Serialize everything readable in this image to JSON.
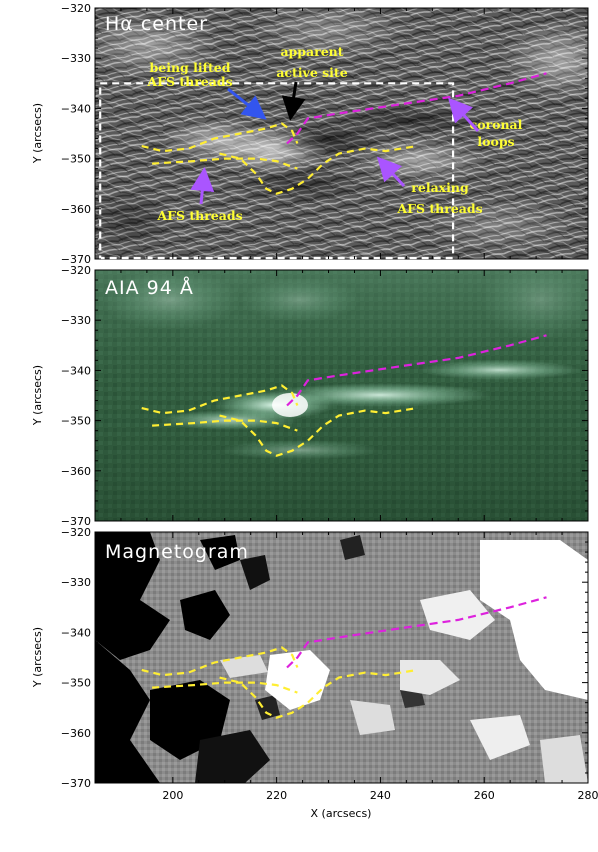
{
  "figure": {
    "panels": [
      {
        "id": "halpha",
        "title": "Hα center",
        "ylabel": "Y (arcsecs)",
        "background": "#6b6b6b",
        "annotations": [
          {
            "id": "being-lifted",
            "lines": [
              "being lifted",
              "AFS threads"
            ],
            "color": "#ffff33"
          },
          {
            "id": "apparent-active",
            "lines": [
              "apparent",
              "active site"
            ],
            "color": "#ffff33"
          },
          {
            "id": "coronal-loops",
            "lines": [
              "coronal",
              "loops"
            ],
            "color": "#ffff33"
          },
          {
            "id": "afs-threads",
            "lines": [
              "AFS threads"
            ],
            "color": "#ffff33"
          },
          {
            "id": "relaxing",
            "lines": [
              "relaxing",
              "AFS threads"
            ],
            "color": "#ffff33"
          }
        ]
      },
      {
        "id": "aia94",
        "title": "AIA 94 Å",
        "ylabel": "Y (arcsecs)",
        "background": "#2f5a3c"
      },
      {
        "id": "magnetogram",
        "title": "Magnetogram",
        "ylabel": "Y (arcsecs)",
        "background": "#8a8a8a"
      }
    ],
    "xlabel": "X (arcsecs)",
    "colors": {
      "filament_dash": "#ffee33",
      "loop_dash": "#dd22dd",
      "arrow_blue": "#3355ee",
      "arrow_black": "#000000",
      "arrow_purple": "#aa55ff",
      "box_dash": "#ffffff"
    }
  },
  "chart_data": [
    {
      "type": "image",
      "panel": "Hα center",
      "xlim": [
        185,
        280
      ],
      "ylim": [
        -370,
        -320
      ],
      "yticks": [
        -320,
        -330,
        -340,
        -350,
        -360,
        -370
      ],
      "ytick_labels": [
        "−320",
        "−330",
        "−340",
        "−350",
        "−360",
        "−370"
      ],
      "xticks": [
        200,
        220,
        240,
        260,
        280
      ],
      "ylabel": "Y (arcsecs)",
      "dashed_box": {
        "x": [
          186,
          254
        ],
        "y": [
          -370,
          -335
        ]
      },
      "filament_lines": [
        [
          [
            194,
            -347.5
          ],
          [
            198,
            -348.5
          ],
          [
            203,
            -348
          ],
          [
            208,
            -346
          ],
          [
            213,
            -345
          ],
          [
            218,
            -344
          ],
          [
            221,
            -343
          ],
          [
            223,
            -344.5
          ],
          [
            224,
            -347
          ]
        ],
        [
          [
            196,
            -351
          ],
          [
            204,
            -350.5
          ],
          [
            210,
            -350
          ],
          [
            216,
            -350
          ],
          [
            220,
            -350.5
          ],
          [
            224,
            -352
          ]
        ],
        [
          [
            209,
            -349
          ],
          [
            213,
            -350
          ],
          [
            216,
            -353
          ],
          [
            218,
            -356
          ],
          [
            220,
            -357
          ],
          [
            223,
            -356
          ],
          [
            226,
            -354
          ],
          [
            229,
            -351
          ],
          [
            232,
            -349
          ],
          [
            237,
            -348
          ],
          [
            241,
            -348.5
          ],
          [
            247,
            -347.5
          ]
        ]
      ],
      "loop_line": [
        [
          222,
          -347
        ],
        [
          224,
          -345
        ],
        [
          226,
          -342
        ],
        [
          232,
          -341
        ],
        [
          245,
          -339
        ],
        [
          255,
          -337.5
        ],
        [
          265,
          -335
        ],
        [
          272,
          -333
        ]
      ]
    },
    {
      "type": "image",
      "panel": "AIA 94 Å",
      "xlim": [
        185,
        280
      ],
      "ylim": [
        -370,
        -320
      ],
      "yticks": [
        -320,
        -330,
        -340,
        -350,
        -360,
        -370
      ],
      "ytick_labels": [
        "−320",
        "−330",
        "−340",
        "−350",
        "−360",
        "−370"
      ],
      "xticks": [
        200,
        220,
        240,
        260,
        280
      ],
      "ylabel": "Y (arcsecs)"
    },
    {
      "type": "image",
      "panel": "Magnetogram",
      "xlim": [
        185,
        280
      ],
      "ylim": [
        -370,
        -320
      ],
      "yticks": [
        -320,
        -330,
        -340,
        -350,
        -360,
        -370
      ],
      "ytick_labels": [
        "−320",
        "−330",
        "−340",
        "−350",
        "−360",
        "−370"
      ],
      "xticks": [
        200,
        220,
        240,
        260,
        280
      ],
      "xtick_labels": [
        "200",
        "220",
        "240",
        "260",
        "280"
      ],
      "xlabel": "X (arcsecs)",
      "ylabel": "Y (arcsecs)"
    }
  ]
}
